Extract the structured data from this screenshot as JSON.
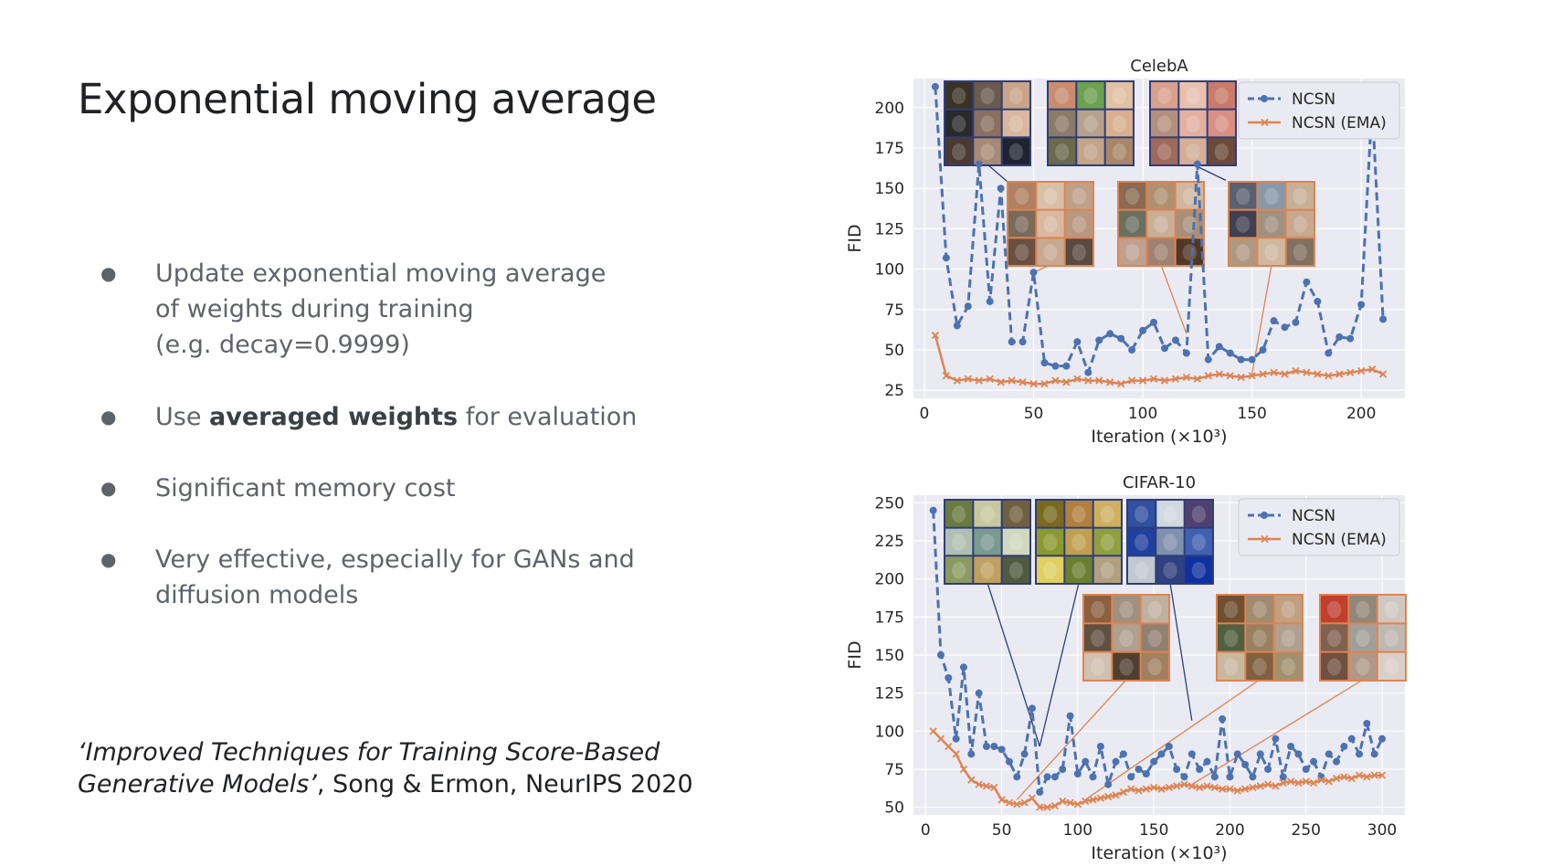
{
  "slide": {
    "title": "Exponential moving average",
    "bullets": [
      {
        "lines": [
          "Update exponential moving average",
          "of weights during training",
          "(e.g. decay=0.9999)"
        ]
      },
      {
        "pre": "Use ",
        "bold": "averaged weights",
        "post": " for evaluation"
      },
      {
        "lines": [
          "Significant memory cost"
        ]
      },
      {
        "lines": [
          "Very effective, especially for GANs and",
          "diffusion models"
        ]
      }
    ],
    "citation": {
      "italic_line1": "‘Improved Techniques for Training Score-Based",
      "italic_line2": "Generative Models’",
      "rest": ", Song & Ermon, NeurIPS 2020"
    }
  },
  "chart_data": [
    {
      "type": "line",
      "title": "CelebA",
      "xlabel": "Iteration (×10³)",
      "ylabel": "FID",
      "xlim": [
        -5,
        220
      ],
      "ylim": [
        20,
        218
      ],
      "xticks": [
        0,
        50,
        100,
        150,
        200
      ],
      "yticks": [
        25,
        50,
        75,
        100,
        125,
        150,
        175,
        200
      ],
      "grid": true,
      "legend": "top-right",
      "colors": {
        "ncsn": "#4c72b0",
        "ema": "#dd8452"
      },
      "series": [
        {
          "name": "NCSN",
          "style": "dashed-dot",
          "x": [
            5,
            10,
            15,
            20,
            25,
            30,
            35,
            40,
            45,
            50,
            55,
            60,
            65,
            70,
            75,
            80,
            85,
            90,
            95,
            100,
            105,
            110,
            115,
            120,
            125,
            130,
            135,
            140,
            145,
            150,
            155,
            160,
            165,
            170,
            175,
            180,
            185,
            190,
            195,
            200,
            205,
            210
          ],
          "y": [
            213,
            107,
            65,
            77,
            165,
            80,
            150,
            55,
            55,
            98,
            42,
            40,
            40,
            55,
            36,
            56,
            60,
            57,
            50,
            62,
            67,
            51,
            56,
            48,
            165,
            44,
            52,
            48,
            44,
            44,
            50,
            68,
            64,
            67,
            92,
            80,
            48,
            58,
            57,
            78,
            202,
            69
          ]
        },
        {
          "name": "NCSN (EMA)",
          "style": "solid-x",
          "x": [
            5,
            10,
            15,
            20,
            25,
            30,
            35,
            40,
            45,
            50,
            55,
            60,
            65,
            70,
            75,
            80,
            85,
            90,
            95,
            100,
            105,
            110,
            115,
            120,
            125,
            130,
            135,
            140,
            145,
            150,
            155,
            160,
            165,
            170,
            175,
            180,
            185,
            190,
            195,
            200,
            205,
            210
          ],
          "y": [
            59,
            34,
            31,
            32,
            31,
            32,
            30,
            31,
            30,
            29,
            29,
            31,
            30,
            32,
            31,
            31,
            30,
            29,
            31,
            31,
            32,
            31,
            32,
            33,
            32,
            34,
            35,
            34,
            33,
            34,
            35,
            36,
            35,
            37,
            36,
            35,
            34,
            35,
            36,
            37,
            38,
            35
          ]
        }
      ]
    },
    {
      "type": "line",
      "title": "CIFAR-10",
      "xlabel": "Iteration (×10³)",
      "ylabel": "FID",
      "xlim": [
        -8,
        315
      ],
      "ylim": [
        45,
        255
      ],
      "xticks": [
        0,
        50,
        100,
        150,
        200,
        250,
        300
      ],
      "yticks": [
        50,
        75,
        100,
        125,
        150,
        175,
        200,
        225,
        250
      ],
      "grid": true,
      "legend": "top-right",
      "colors": {
        "ncsn": "#4c72b0",
        "ema": "#dd8452"
      },
      "series": [
        {
          "name": "NCSN",
          "style": "dashed-dot",
          "x": [
            5,
            10,
            15,
            20,
            25,
            30,
            35,
            40,
            45,
            50,
            55,
            60,
            65,
            70,
            75,
            80,
            85,
            90,
            95,
            100,
            105,
            110,
            115,
            120,
            125,
            130,
            135,
            140,
            145,
            150,
            155,
            160,
            165,
            170,
            175,
            180,
            185,
            190,
            195,
            200,
            205,
            210,
            215,
            220,
            225,
            230,
            235,
            240,
            245,
            250,
            255,
            260,
            265,
            270,
            275,
            280,
            285,
            290,
            295,
            300
          ],
          "y": [
            245,
            150,
            135,
            95,
            142,
            85,
            125,
            90,
            90,
            88,
            80,
            70,
            85,
            115,
            60,
            70,
            70,
            75,
            110,
            72,
            80,
            70,
            90,
            65,
            80,
            85,
            70,
            75,
            72,
            80,
            85,
            90,
            75,
            70,
            85,
            75,
            80,
            70,
            108,
            70,
            85,
            78,
            70,
            85,
            75,
            95,
            70,
            90,
            85,
            75,
            80,
            70,
            85,
            80,
            90,
            95,
            85,
            105,
            85,
            95
          ]
        },
        {
          "name": "NCSN (EMA)",
          "style": "solid-x",
          "x": [
            5,
            10,
            15,
            20,
            25,
            30,
            35,
            40,
            45,
            50,
            55,
            60,
            65,
            70,
            75,
            80,
            85,
            90,
            95,
            100,
            105,
            110,
            115,
            120,
            125,
            130,
            135,
            140,
            145,
            150,
            155,
            160,
            165,
            170,
            175,
            180,
            185,
            190,
            195,
            200,
            205,
            210,
            215,
            220,
            225,
            230,
            235,
            240,
            245,
            250,
            255,
            260,
            265,
            270,
            275,
            280,
            285,
            290,
            295,
            300
          ],
          "y": [
            100,
            95,
            90,
            85,
            75,
            68,
            65,
            64,
            63,
            55,
            53,
            52,
            53,
            56,
            50,
            50,
            51,
            54,
            53,
            52,
            54,
            55,
            56,
            57,
            58,
            60,
            62,
            61,
            62,
            63,
            62,
            63,
            64,
            65,
            64,
            63,
            64,
            63,
            62,
            62,
            61,
            62,
            63,
            64,
            65,
            64,
            66,
            67,
            66,
            67,
            66,
            68,
            67,
            69,
            70,
            69,
            71,
            70,
            71,
            71
          ]
        }
      ]
    }
  ]
}
